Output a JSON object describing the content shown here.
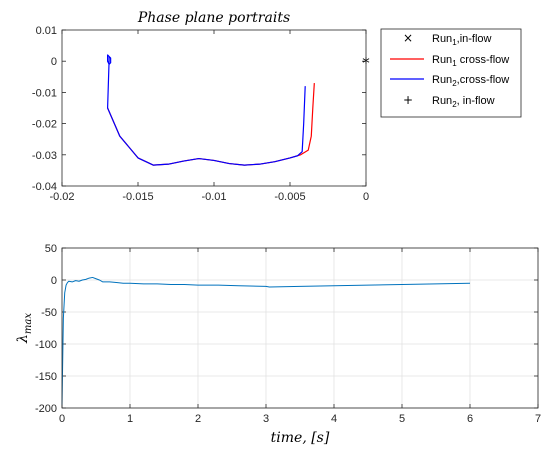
{
  "chart_data": [
    {
      "type": "line",
      "title": "Phase   plane   portraits",
      "xlim": [
        -0.02,
        0
      ],
      "ylim": [
        -0.04,
        0.01
      ],
      "xticks": [
        "-0.02",
        "-0.015",
        "-0.01",
        "-0.005",
        "0"
      ],
      "yticks": [
        "0.01",
        "0",
        "-0.01",
        "-0.02",
        "-0.03",
        "-0.04"
      ],
      "grid": false,
      "legend_position": "outside-right",
      "legend": [
        {
          "marker": "×",
          "base": "Run",
          "sub": "1",
          "rest": ",in-flow"
        },
        {
          "marker": "line-red",
          "base": "Run",
          "sub": "1",
          "rest": " cross-flow"
        },
        {
          "marker": "line-blue",
          "base": "Run",
          "sub": "2",
          "rest": ",cross-flow"
        },
        {
          "marker": "+",
          "base": "Run",
          "sub": "2",
          "rest": ", in-flow"
        }
      ],
      "markers": [
        {
          "symbol": "*",
          "x": 0.0,
          "y": 0.0,
          "color": "#000000"
        }
      ],
      "series": [
        {
          "color": "#ff0000",
          "x": [
            -0.017,
            -0.0162,
            -0.015,
            -0.014,
            -0.013,
            -0.012,
            -0.011,
            -0.01,
            -0.009,
            -0.008,
            -0.007,
            -0.006,
            -0.005,
            -0.0043,
            -0.0038,
            -0.0036,
            -0.0035,
            -0.0034
          ],
          "y": [
            -0.015,
            -0.024,
            -0.031,
            -0.0333,
            -0.033,
            -0.032,
            -0.0312,
            -0.0318,
            -0.0328,
            -0.0333,
            -0.033,
            -0.0322,
            -0.031,
            -0.03,
            -0.0285,
            -0.024,
            -0.015,
            -0.007
          ]
        },
        {
          "color": "#0000ff",
          "x": [
            -0.0169,
            -0.0169,
            -0.017,
            -0.017,
            -0.0169,
            -0.0168,
            -0.0168,
            -0.0169,
            -0.0169,
            -0.017,
            -0.0162,
            -0.015,
            -0.014,
            -0.013,
            -0.012,
            -0.011,
            -0.01,
            -0.009,
            -0.008,
            -0.007,
            -0.006,
            -0.005,
            -0.0045,
            -0.0042,
            -0.0041,
            -0.004
          ],
          "y": [
            0.0,
            0.0015,
            0.002,
            0.0,
            -0.001,
            -0.0005,
            0.001,
            0.0015,
            0.0005,
            -0.015,
            -0.024,
            -0.031,
            -0.0333,
            -0.033,
            -0.032,
            -0.0312,
            -0.0318,
            -0.0328,
            -0.0333,
            -0.033,
            -0.0322,
            -0.031,
            -0.0303,
            -0.029,
            -0.02,
            -0.008
          ]
        }
      ]
    },
    {
      "type": "line",
      "title": "",
      "xlabel": "time, [s]",
      "ylabel": "λ_max",
      "xlim": [
        0,
        7
      ],
      "ylim": [
        -200,
        50
      ],
      "xticks": [
        "0",
        "1",
        "2",
        "3",
        "4",
        "5",
        "6",
        "7"
      ],
      "yticks": [
        "50",
        "0",
        "-50",
        "-100",
        "-150",
        "-200"
      ],
      "grid": true,
      "series": [
        {
          "color": "#0072bd",
          "x": [
            0.0,
            0.02,
            0.04,
            0.06,
            0.08,
            0.1,
            0.15,
            0.2,
            0.25,
            0.3,
            0.35,
            0.4,
            0.45,
            0.5,
            0.55,
            0.6,
            0.7,
            0.8,
            0.9,
            1.0,
            1.2,
            1.4,
            1.6,
            1.8,
            2.0,
            2.3,
            2.6,
            3.0,
            3.05,
            3.5,
            4.0,
            4.5,
            5.0,
            5.5,
            6.0
          ],
          "y": [
            -195,
            -60,
            -20,
            -8,
            -4,
            -2,
            -3,
            -1,
            -2,
            0,
            1,
            3,
            4,
            2,
            0,
            -3,
            -3,
            -4,
            -5,
            -5,
            -6,
            -6,
            -7,
            -7,
            -8,
            -8,
            -9,
            -10,
            -11,
            -10,
            -9,
            -8,
            -7,
            -6,
            -5
          ]
        }
      ]
    }
  ]
}
